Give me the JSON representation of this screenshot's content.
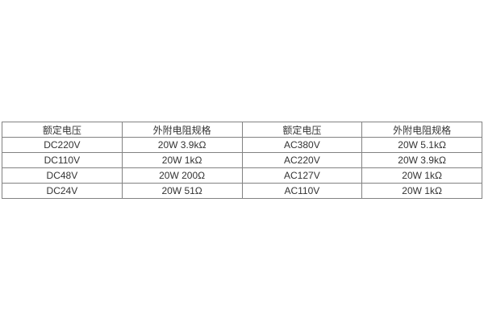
{
  "page": {
    "background_color": "#ffffff"
  },
  "table": {
    "border_color": "#828282",
    "text_color": "#333333",
    "columns": [
      "额定电压",
      "外附电阻规格",
      "额定电压",
      "外附电阻规格"
    ],
    "rows": [
      [
        "DC220V",
        "20W 3.9kΩ",
        "AC380V",
        "20W 5.1kΩ"
      ],
      [
        "DC110V",
        "20W 1kΩ",
        "AC220V",
        "20W 3.9kΩ"
      ],
      [
        "DC48V",
        "20W 200Ω",
        "AC127V",
        "20W 1kΩ"
      ],
      [
        "DC24V",
        "20W 51Ω",
        "AC110V",
        "20W 1kΩ"
      ]
    ]
  }
}
